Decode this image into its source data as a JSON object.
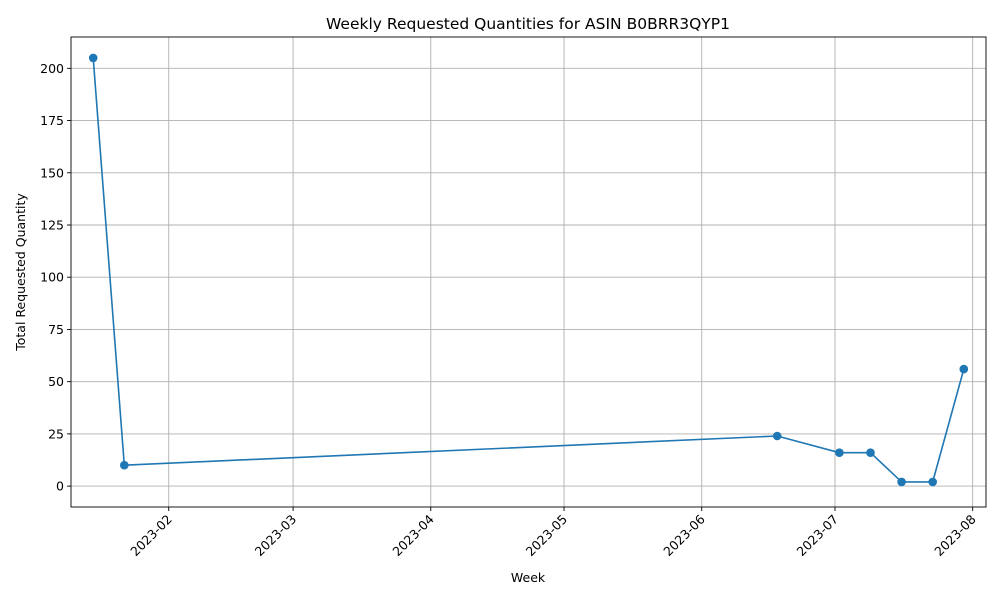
{
  "chart_data": {
    "type": "line",
    "title": "Weekly Requested Quantities for ASIN B0BRR3QYP1",
    "xlabel": "Week",
    "ylabel": "Total Requested Quantity",
    "x_ticks": [
      "2023-02",
      "2023-03",
      "2023-04",
      "2023-05",
      "2023-06",
      "2023-07",
      "2023-08"
    ],
    "y_ticks": [
      0,
      25,
      50,
      75,
      100,
      125,
      150,
      175,
      200
    ],
    "ylim": [
      -10,
      215
    ],
    "xlim": [
      "2023-01-10",
      "2023-08-04"
    ],
    "grid": true,
    "series": [
      {
        "color": "#1f77b4",
        "marker": "circle",
        "x": [
          "2023-01-15",
          "2023-01-22",
          "2023-06-18",
          "2023-07-02",
          "2023-07-09",
          "2023-07-16",
          "2023-07-23",
          "2023-07-30"
        ],
        "values": [
          205,
          10,
          24,
          16,
          16,
          2,
          2,
          56
        ]
      }
    ]
  }
}
